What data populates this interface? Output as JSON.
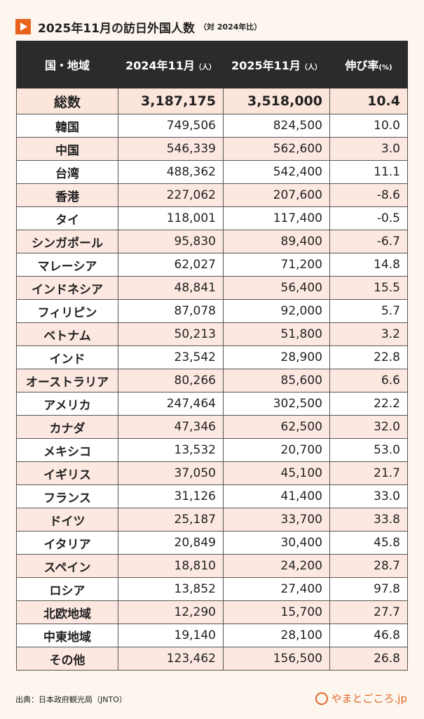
{
  "header": {
    "title": "2025年11月の訪日外国人数",
    "subtitle": "（対 2024年比）"
  },
  "table": {
    "columns": [
      {
        "label": "国・地域",
        "unit": null
      },
      {
        "label": "2024年11月",
        "unit": "（人）"
      },
      {
        "label": "2025年11月",
        "unit": "（人）"
      },
      {
        "label": "伸び率",
        "unit": "(%)"
      }
    ],
    "total": [
      "総数",
      "3,187,175",
      "3,518,000",
      "10.4"
    ],
    "rows": [
      [
        "韓国",
        "749,506",
        "824,500",
        "10.0"
      ],
      [
        "中国",
        "546,339",
        "562,600",
        "3.0"
      ],
      [
        "台湾",
        "488,362",
        "542,400",
        "11.1"
      ],
      [
        "香港",
        "227,062",
        "207,600",
        "-8.6"
      ],
      [
        "タイ",
        "118,001",
        "117,400",
        "-0.5"
      ],
      [
        "シンガポール",
        "95,830",
        "89,400",
        "-6.7"
      ],
      [
        "マレーシア",
        "62,027",
        "71,200",
        "14.8"
      ],
      [
        "インドネシア",
        "48,841",
        "56,400",
        "15.5"
      ],
      [
        "フィリピン",
        "87,078",
        "92,000",
        "5.7"
      ],
      [
        "ベトナム",
        "50,213",
        "51,800",
        "3.2"
      ],
      [
        "インド",
        "23,542",
        "28,900",
        "22.8"
      ],
      [
        "オーストラリア",
        "80,266",
        "85,600",
        "6.6"
      ],
      [
        "アメリカ",
        "247,464",
        "302,500",
        "22.2"
      ],
      [
        "カナダ",
        "47,346",
        "62,500",
        "32.0"
      ],
      [
        "メキシコ",
        "13,532",
        "20,700",
        "53.0"
      ],
      [
        "イギリス",
        "37,050",
        "45,100",
        "21.7"
      ],
      [
        "フランス",
        "31,126",
        "41,400",
        "33.0"
      ],
      [
        "ドイツ",
        "25,187",
        "33,700",
        "33.8"
      ],
      [
        "イタリア",
        "20,849",
        "30,400",
        "45.8"
      ],
      [
        "スペイン",
        "18,810",
        "24,200",
        "28.7"
      ],
      [
        "ロシア",
        "13,852",
        "27,400",
        "97.8"
      ],
      [
        "北欧地域",
        "12,290",
        "15,700",
        "27.7"
      ],
      [
        "中東地域",
        "19,140",
        "28,100",
        "46.8"
      ],
      [
        "その他",
        "123,462",
        "156,500",
        "26.8"
      ]
    ]
  },
  "footer": {
    "source": "出典：日本政府観光局（JNTO）",
    "logo": "やまとごころ.jp"
  }
}
